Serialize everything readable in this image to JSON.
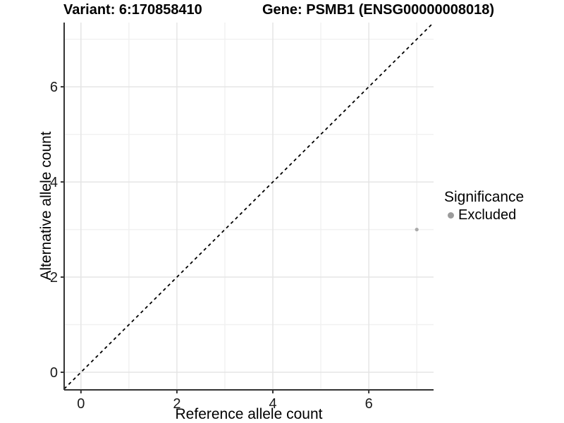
{
  "titles": {
    "variant": "Variant: 6:170858410",
    "gene": "Gene: PSMB1 (ENSG00000008018)"
  },
  "chart_data": {
    "type": "scatter",
    "title_left": "Variant: 6:170858410",
    "title_right": "Gene: PSMB1 (ENSG00000008018)",
    "xlabel": "Reference allele count",
    "ylabel": "Alternative allele count",
    "xlim": [
      -0.35,
      7.35
    ],
    "ylim": [
      -0.37,
      7.35
    ],
    "x_ticks": [
      0,
      2,
      4,
      6
    ],
    "y_ticks": [
      0,
      2,
      4,
      6
    ],
    "x_minor_ticks": [
      1,
      3,
      5,
      7
    ],
    "y_minor_ticks": [
      1,
      3,
      5,
      7
    ],
    "grid": true,
    "reference_line": {
      "kind": "identity",
      "slope": 1,
      "intercept": 0,
      "style": "dashed",
      "color": "#000000"
    },
    "series": [
      {
        "name": "Excluded",
        "color": "#aaaaaa",
        "points": [
          {
            "x": 7,
            "y": 3
          }
        ]
      }
    ],
    "legend": {
      "title": "Significance",
      "position": "right",
      "entries": [
        {
          "label": "Excluded",
          "color": "#9b9b9b"
        }
      ]
    },
    "colors": {
      "grid_major": "#e5e5e5",
      "grid_minor": "#f1f1f1",
      "axis_line": "#333333",
      "tick_mark": "#333333",
      "tick_label": "#1a1a1a",
      "panel_background": "#ffffff"
    }
  }
}
